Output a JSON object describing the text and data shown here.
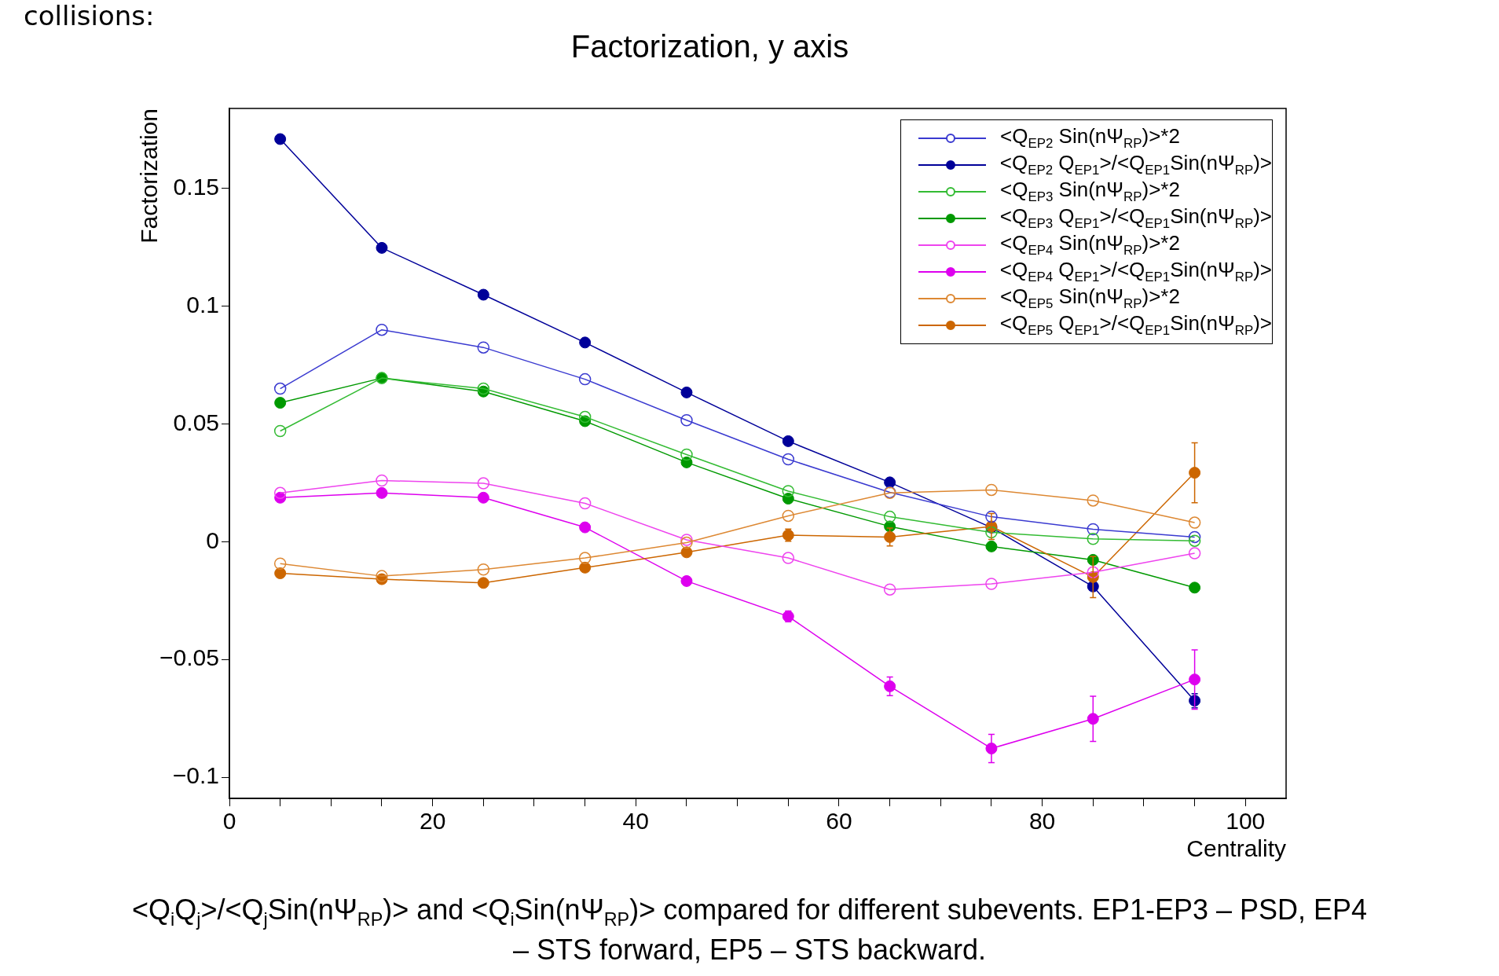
{
  "chart_data": {
    "type": "line",
    "title": "Factorization, y axis",
    "xlabel": "Centrality",
    "ylabel": "Factorization",
    "x": [
      5,
      15,
      25,
      35,
      45,
      55,
      65,
      75,
      85,
      95
    ],
    "xlim": [
      0,
      104
    ],
    "xticks": [
      0,
      {
        "value": 5,
        "label": null
      },
      {
        "value": 10,
        "label": null
      },
      {
        "value": 15,
        "label": null
      },
      20,
      {
        "value": 25,
        "label": null
      },
      {
        "value": 30,
        "label": null
      },
      {
        "value": 35,
        "label": null
      },
      40,
      {
        "value": 45,
        "label": null
      },
      {
        "value": 50,
        "label": null
      },
      {
        "value": 55,
        "label": null
      },
      60,
      {
        "value": 65,
        "label": null
      },
      {
        "value": 70,
        "label": null
      },
      {
        "value": 75,
        "label": null
      },
      80,
      {
        "value": 85,
        "label": null
      },
      {
        "value": 90,
        "label": null
      },
      {
        "value": 95,
        "label": null
      },
      100
    ],
    "ylim": [
      -0.109,
      0.184
    ],
    "yticks": [
      {
        "value": -0.1,
        "label": "−0.1"
      },
      {
        "value": -0.05,
        "label": "−0.05"
      },
      0,
      0.05,
      0.1,
      0.15
    ],
    "grid": false,
    "legend": "top right",
    "marker": "circle",
    "line_style": "solid",
    "series": [
      {
        "name": "<Q$_{EP2}$ Sin(nΨ$_{RP}$)>*2",
        "color": "#3a3ad0",
        "values": [
          0.065,
          0.09,
          0.0825,
          0.069,
          0.0516,
          0.035,
          0.021,
          0.0106,
          0.0053,
          0.002
        ]
      },
      {
        "name": "<Q$_{EP2}$ Q$_{EP1}$>/<Q$_{EP1}$Sin(nΨ$_{RP}$)>",
        "color": "#000099",
        "values": [
          0.171,
          0.1248,
          0.1049,
          0.0846,
          0.0634,
          0.0427,
          0.0252,
          0.006,
          -0.019,
          -0.0675
        ],
        "errors": [
          null,
          null,
          null,
          null,
          null,
          null,
          null,
          null,
          null,
          0.003
        ]
      },
      {
        "name": "<Q$_{EP3}$ Sin(nΨ$_{RP}$)>*2",
        "color": "#33bb33",
        "values": [
          0.047,
          0.0695,
          0.065,
          0.053,
          0.037,
          0.0215,
          0.0106,
          0.004,
          0.0012,
          0.0004
        ]
      },
      {
        "name": "<Q$_{EP3}$ Q$_{EP1}$>/<Q$_{EP1}$Sin(nΨ$_{RP}$)>",
        "color": "#009900",
        "values": [
          0.059,
          0.0695,
          0.0638,
          0.0512,
          0.0337,
          0.0183,
          0.0065,
          -0.002,
          -0.0077,
          -0.0195
        ]
      },
      {
        "name": "<Q$_{EP4}$ Sin(nΨ$_{RP}$)>*2",
        "color": "#ee44ee",
        "values": [
          0.0207,
          0.026,
          0.0248,
          0.0163,
          0.0008,
          -0.0069,
          -0.0203,
          -0.0179,
          -0.013,
          -0.0049
        ]
      },
      {
        "name": "<Q$_{EP4}$ Q$_{EP1}$>/<Q$_{EP1}$Sin(nΨ$_{RP}$)>",
        "color": "#dd00ee",
        "values": [
          0.0187,
          0.0207,
          0.0187,
          0.0061,
          -0.0167,
          -0.0317,
          -0.0614,
          -0.0878,
          -0.0752,
          -0.0585
        ],
        "errors": [
          null,
          null,
          null,
          null,
          null,
          0.0023,
          0.004,
          0.006,
          0.0096,
          0.0126
        ]
      },
      {
        "name": "<Q$_{EP5}$ Sin(nΨ$_{RP}$)>*2",
        "color": "#dd8833",
        "values": [
          -0.0093,
          -0.0146,
          -0.0118,
          -0.0069,
          -0.0004,
          0.011,
          0.0207,
          0.022,
          0.0175,
          0.0081
        ]
      },
      {
        "name": "<Q$_{EP5}$ Q$_{EP1}$>/<Q$_{EP1}$Sin(nΨ$_{RP}$)>",
        "color": "#cc6600",
        "values": [
          -0.0134,
          -0.0159,
          -0.0175,
          -0.011,
          -0.0045,
          0.0028,
          0.002,
          0.0065,
          -0.015,
          0.0293
        ],
        "errors": [
          null,
          null,
          null,
          null,
          null,
          0.0026,
          0.0038,
          0.0055,
          0.0087,
          0.0127
        ]
      }
    ],
    "annotations": [
      "collisions:",
      "<Q$_{i}$Q$_{j}$>/<Q$_{j}$Sin(nΨ$_{RP}$)> and <Q$_{i}$Sin(nΨ$_{RP}$)> compared for different subevents. EP1-EP3 – PSD, EP4 – STS forward, EP5 – STS backward."
    ]
  }
}
